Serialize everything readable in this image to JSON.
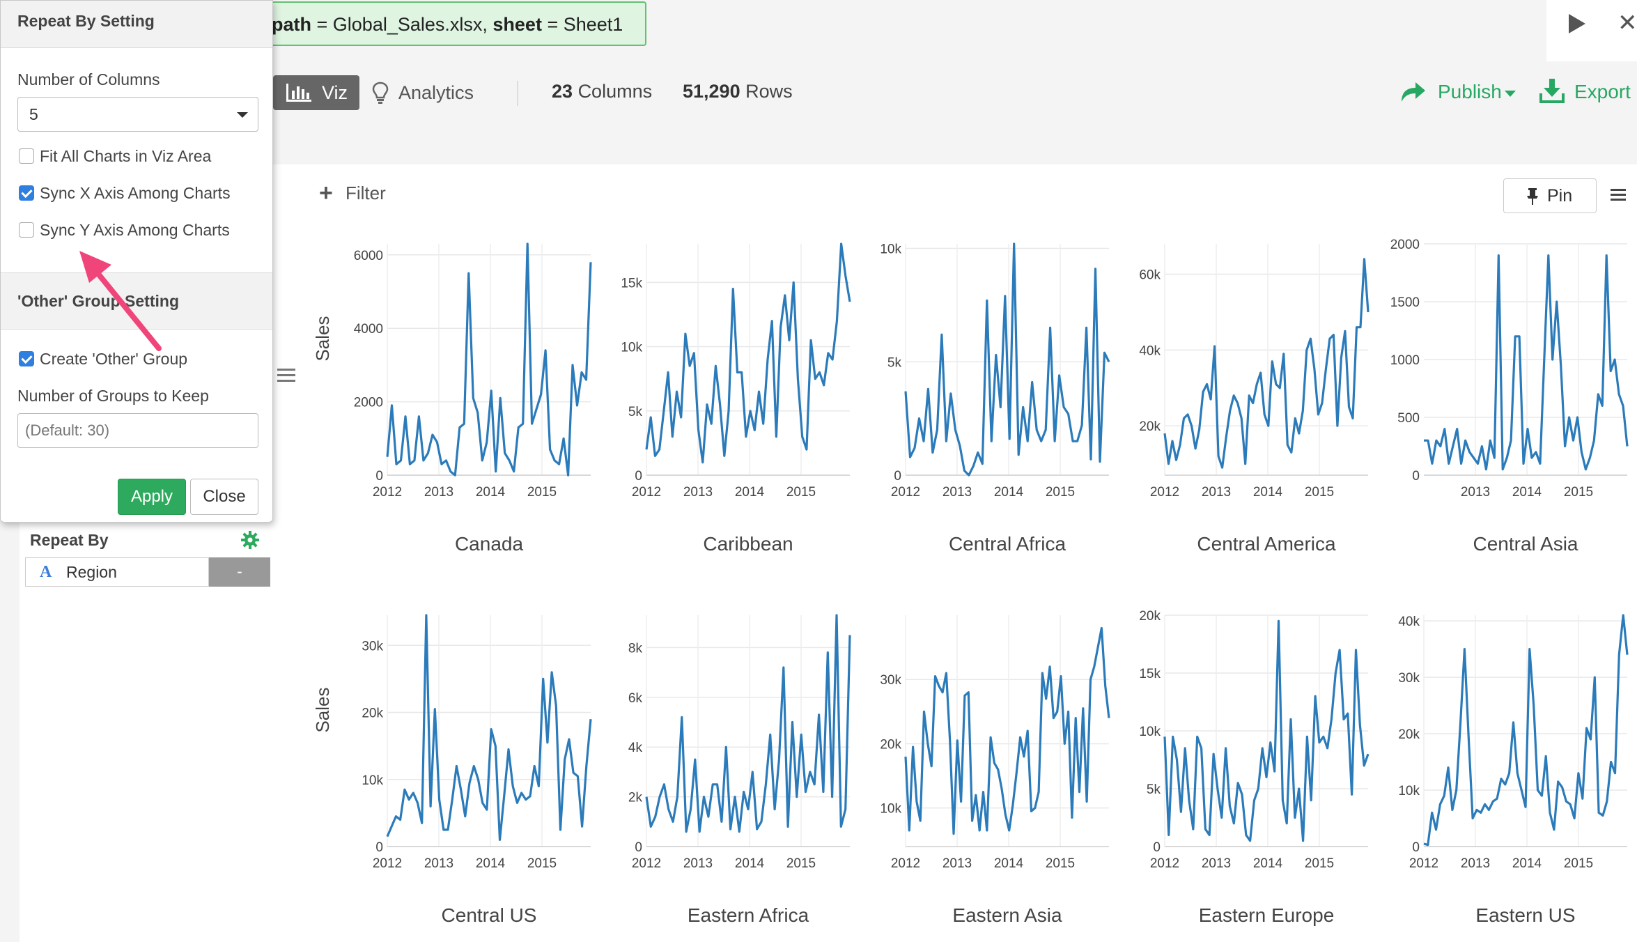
{
  "command": {
    "path_fragment": "path",
    "path_value": "Global_Sales.xlsx",
    "sheet_label": "sheet",
    "sheet_value": "Sheet1",
    "run_icon": "play-icon",
    "close_icon": "close-icon"
  },
  "toolbar": {
    "viz_label": "Viz",
    "analytics_label": "Analytics",
    "columns_count": "23",
    "columns_label": "Columns",
    "rows_count": "51,290",
    "rows_label": "Rows",
    "publish_label": "Publish",
    "export_label": "Export",
    "accent_color": "#27a862"
  },
  "popover": {
    "title": "Repeat By Setting",
    "columns_label": "Number of Columns",
    "columns_value": "5",
    "fit_all_label": "Fit All Charts in Viz Area",
    "fit_all_checked": false,
    "sync_x_label": "Sync X Axis Among Charts",
    "sync_x_checked": true,
    "sync_y_label": "Sync Y Axis Among Charts",
    "sync_y_checked": false,
    "other_group_title": "'Other' Group Setting",
    "create_other_label": "Create 'Other' Group",
    "create_other_checked": true,
    "groups_keep_label": "Number of Groups to Keep",
    "groups_keep_placeholder": "(Default: 30)",
    "apply_label": "Apply",
    "close_label": "Close"
  },
  "left_panel": {
    "repeat_by_label": "Repeat By",
    "field_type_glyph": "A",
    "field_name": "Region",
    "remove_label": "-"
  },
  "viz": {
    "filter_label": "Filter",
    "pin_label": "Pin"
  },
  "chart_data": [
    {
      "type": "line",
      "title": "Canada",
      "ylabel": "Sales",
      "x_ticks": [
        "2012",
        "2013",
        "2014",
        "2015"
      ],
      "y_ticks": [
        "0",
        "2000",
        "4000",
        "6000"
      ],
      "ylim": [
        0,
        6300
      ],
      "line_color": "#2b7bba",
      "values": [
        500,
        1900,
        300,
        400,
        1600,
        300,
        400,
        1600,
        400,
        600,
        1100,
        900,
        300,
        400,
        100,
        0,
        1300,
        1400,
        5500,
        2100,
        1700,
        400,
        900,
        2300,
        100,
        2100,
        600,
        400,
        100,
        1300,
        1400,
        6300,
        1400,
        1800,
        2200,
        3400,
        700,
        400,
        300,
        1000,
        0,
        3000,
        1900,
        2800,
        2600,
        5800
      ]
    },
    {
      "type": "line",
      "title": "Caribbean",
      "ylabel": "",
      "x_ticks": [
        "2012",
        "2013",
        "2014",
        "2015"
      ],
      "y_ticks": [
        "0",
        "5k",
        "10k",
        "15k"
      ],
      "ylim": [
        0,
        18000
      ],
      "line_color": "#2b7bba",
      "values": [
        2000,
        4500,
        1500,
        2000,
        5000,
        8000,
        3000,
        6500,
        4500,
        11000,
        8500,
        9500,
        3500,
        1000,
        5500,
        4000,
        8500,
        5500,
        1500,
        5000,
        14500,
        8000,
        8000,
        3000,
        5000,
        3500,
        6500,
        4000,
        9000,
        12000,
        3000,
        11500,
        14000,
        10500,
        15000,
        7500,
        3000,
        2000,
        10500,
        7500,
        8000,
        7000,
        9500,
        9000,
        12000,
        18000,
        15500,
        13500
      ]
    },
    {
      "type": "line",
      "title": "Central Africa",
      "ylabel": "",
      "x_ticks": [
        "2012",
        "2013",
        "2014",
        "2015"
      ],
      "y_ticks": [
        "0",
        "5k",
        "10k"
      ],
      "ylim": [
        0,
        10200
      ],
      "line_color": "#2b7bba",
      "values": [
        3700,
        800,
        1200,
        2500,
        1500,
        3800,
        1000,
        2000,
        6200,
        1500,
        3600,
        2000,
        1300,
        200,
        0,
        400,
        1000,
        500,
        7700,
        1500,
        5300,
        3000,
        7900,
        1600,
        10200,
        900,
        3000,
        1500,
        4100,
        2000,
        1500,
        2000,
        6500,
        1500,
        4400,
        3000,
        2700,
        1500,
        1500,
        2200,
        6500,
        700,
        9100,
        600,
        5400,
        5000
      ]
    },
    {
      "type": "line",
      "title": "Central America",
      "ylabel": "",
      "x_ticks": [
        "2012",
        "2013",
        "2014",
        "2015"
      ],
      "y_ticks": [
        "20k",
        "40k",
        "60k"
      ],
      "ylim": [
        7000,
        68000
      ],
      "line_color": "#2b7bba",
      "values": [
        18000,
        10000,
        16000,
        11000,
        15000,
        22000,
        23000,
        20000,
        14000,
        19000,
        29000,
        31000,
        27000,
        41000,
        12000,
        9000,
        17000,
        24000,
        28000,
        26000,
        22000,
        10000,
        28000,
        26000,
        31000,
        34000,
        23000,
        20000,
        37000,
        31000,
        30000,
        39000,
        15000,
        13000,
        22000,
        18000,
        24000,
        40000,
        43000,
        35000,
        23000,
        26000,
        35000,
        43000,
        44000,
        20000,
        38000,
        45000,
        25000,
        22000,
        46000,
        46000,
        64000,
        50000
      ]
    },
    {
      "type": "line",
      "title": "Central Asia",
      "ylabel": "",
      "x_ticks": [
        "2013",
        "2014",
        "2015"
      ],
      "y_ticks": [
        "0",
        "500",
        "1000",
        "1500",
        "2000"
      ],
      "ylim": [
        0,
        2000
      ],
      "line_color": "#2b7bba",
      "values": [
        300,
        300,
        100,
        300,
        250,
        400,
        100,
        250,
        400,
        100,
        300,
        200,
        150,
        100,
        250,
        50,
        300,
        150,
        1900,
        50,
        150,
        300,
        1200,
        1200,
        100,
        400,
        150,
        200,
        100,
        1000,
        1900,
        1000,
        1500,
        950,
        250,
        500,
        300,
        500,
        200,
        50,
        150,
        300,
        700,
        600,
        1900,
        900,
        1000,
        700,
        600,
        250
      ]
    },
    {
      "type": "line",
      "title": "Central US",
      "ylabel": "Sales",
      "x_ticks": [
        "2012",
        "2013",
        "2014",
        "2015"
      ],
      "y_ticks": [
        "0",
        "10k",
        "20k",
        "30k"
      ],
      "ylim": [
        0,
        34500
      ],
      "line_color": "#2b7bba",
      "values": [
        1500,
        3000,
        4500,
        4000,
        8500,
        7000,
        8000,
        6500,
        3500,
        34500,
        6000,
        20500,
        7000,
        2500,
        2500,
        7000,
        12000,
        8500,
        4500,
        9500,
        12000,
        10000,
        6500,
        5500,
        17500,
        15000,
        1000,
        7500,
        14500,
        9000,
        6500,
        8000,
        7000,
        7500,
        12000,
        9000,
        25000,
        15500,
        26000,
        21000,
        2500,
        13000,
        16000,
        11000,
        10500,
        3000,
        12000,
        19000
      ]
    },
    {
      "type": "line",
      "title": "Eastern Africa",
      "ylabel": "",
      "x_ticks": [
        "2012",
        "2013",
        "2014",
        "2015"
      ],
      "y_ticks": [
        "0",
        "2k",
        "4k",
        "6k",
        "8k"
      ],
      "ylim": [
        0,
        9300
      ],
      "line_color": "#2b7bba",
      "values": [
        2000,
        800,
        1200,
        2000,
        2500,
        1500,
        1000,
        2000,
        5200,
        600,
        1500,
        3500,
        600,
        2000,
        1200,
        2500,
        2500,
        1000,
        4000,
        700,
        2000,
        600,
        2200,
        1500,
        3000,
        700,
        1000,
        2500,
        4500,
        1500,
        3500,
        7200,
        800,
        5000,
        2000,
        4500,
        2200,
        3000,
        2500,
        5300,
        2200,
        7800,
        2000,
        9300,
        800,
        1500,
        8500
      ]
    },
    {
      "type": "line",
      "title": "Eastern Asia",
      "ylabel": "",
      "x_ticks": [
        "2012",
        "2013",
        "2014",
        "2015"
      ],
      "y_ticks": [
        "10k",
        "20k",
        "30k"
      ],
      "ylim": [
        4000,
        40000
      ],
      "line_color": "#2b7bba",
      "values": [
        18000,
        6500,
        19500,
        11000,
        8000,
        25000,
        20000,
        16500,
        30500,
        29000,
        28000,
        31000,
        20500,
        6000,
        20500,
        11000,
        27500,
        28000,
        8000,
        12000,
        6500,
        12500,
        6500,
        21000,
        17000,
        16000,
        13000,
        9000,
        6500,
        10500,
        15500,
        21000,
        18000,
        22000,
        9500,
        10000,
        12500,
        31000,
        27000,
        32000,
        24000,
        25000,
        30500,
        20000,
        25000,
        8500,
        24000,
        12500,
        25500,
        11000,
        30000,
        32000,
        35000,
        38000,
        29000,
        24000
      ]
    },
    {
      "type": "line",
      "title": "Eastern Europe",
      "ylabel": "",
      "x_ticks": [
        "2012",
        "2013",
        "2014",
        "2015"
      ],
      "y_ticks": [
        "0",
        "5k",
        "10k",
        "15k",
        "20k"
      ],
      "ylim": [
        0,
        20000
      ],
      "line_color": "#2b7bba",
      "values": [
        9500,
        1000,
        9500,
        7500,
        3000,
        8500,
        4000,
        1500,
        9500,
        8500,
        1500,
        1000,
        8000,
        5000,
        2500,
        8500,
        3500,
        2000,
        5500,
        4500,
        1000,
        500,
        4000,
        5000,
        8500,
        6000,
        9000,
        6500,
        19500,
        4000,
        2000,
        11000,
        2500,
        5000,
        500,
        9500,
        4000,
        13000,
        9000,
        9500,
        8500,
        11000,
        15000,
        17000,
        11000,
        11500,
        4500,
        17000,
        10500,
        7000,
        8000
      ]
    },
    {
      "type": "line",
      "title": "Eastern US",
      "ylabel": "",
      "x_ticks": [
        "2012",
        "2013",
        "2014",
        "2015"
      ],
      "y_ticks": [
        "0",
        "10k",
        "20k",
        "30k",
        "40k"
      ],
      "ylim": [
        0,
        41000
      ],
      "line_color": "#2b7bba",
      "values": [
        500,
        300,
        6000,
        3000,
        7500,
        9000,
        14000,
        6500,
        10000,
        22000,
        35000,
        19500,
        5000,
        6500,
        6000,
        7500,
        6500,
        8000,
        8500,
        12000,
        11000,
        13000,
        22000,
        13000,
        10000,
        7000,
        35000,
        25000,
        10000,
        9000,
        16000,
        6000,
        3000,
        11500,
        10500,
        8000,
        7500,
        5000,
        13000,
        8500,
        21000,
        19000,
        30000,
        6000,
        5500,
        8000,
        15000,
        13000,
        34000,
        41000,
        34000
      ]
    }
  ]
}
